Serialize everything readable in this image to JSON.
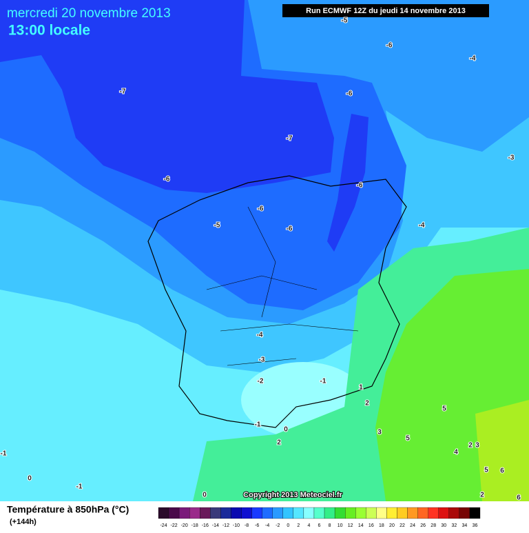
{
  "header": {
    "date": "mercredi 20 novembre 2013",
    "time": "13:00 locale",
    "run": "Run ECMWF 12Z du jeudi 14 novembre 2013"
  },
  "contour_labels": [
    -5,
    -6,
    -4,
    -7,
    -6,
    -7,
    -3,
    -6,
    -6,
    -6,
    -5,
    -6,
    -4,
    -4,
    -3,
    -2,
    -1,
    1,
    2,
    3,
    5,
    5,
    4,
    2,
    3,
    -1,
    0,
    2,
    -1,
    0,
    -1,
    0,
    5,
    6,
    2,
    6
  ],
  "copyright": "Copyright 2013 Meteociel.fr",
  "legend": {
    "title": "Température à 850hPa (°C)",
    "lead": "(+144h)",
    "scale": [
      -24,
      -22,
      -20,
      -18,
      -16,
      -14,
      -12,
      -10,
      -8,
      -6,
      -4,
      -2,
      0,
      2,
      4,
      6,
      8,
      10,
      12,
      14,
      16,
      18,
      20,
      22,
      24,
      26,
      28,
      30,
      32,
      34,
      36
    ],
    "colors": [
      "#2a0a2a",
      "#4a0a4a",
      "#7a1a7a",
      "#9a2a8a",
      "#6a1a5a",
      "#3a3a7a",
      "#1a2a9a",
      "#0a0ab0",
      "#1010d0",
      "#1a3aff",
      "#1e6cff",
      "#2a9aff",
      "#33c4ff",
      "#55e6ff",
      "#88ffff",
      "#55ffcc",
      "#33ee88",
      "#33dd33",
      "#66ee22",
      "#99ff33",
      "#ccff55",
      "#ffff88",
      "#ffee33",
      "#ffcc22",
      "#ff9922",
      "#ff6622",
      "#ff3322",
      "#dd1111",
      "#aa0a0a",
      "#770505",
      "#000000"
    ]
  }
}
